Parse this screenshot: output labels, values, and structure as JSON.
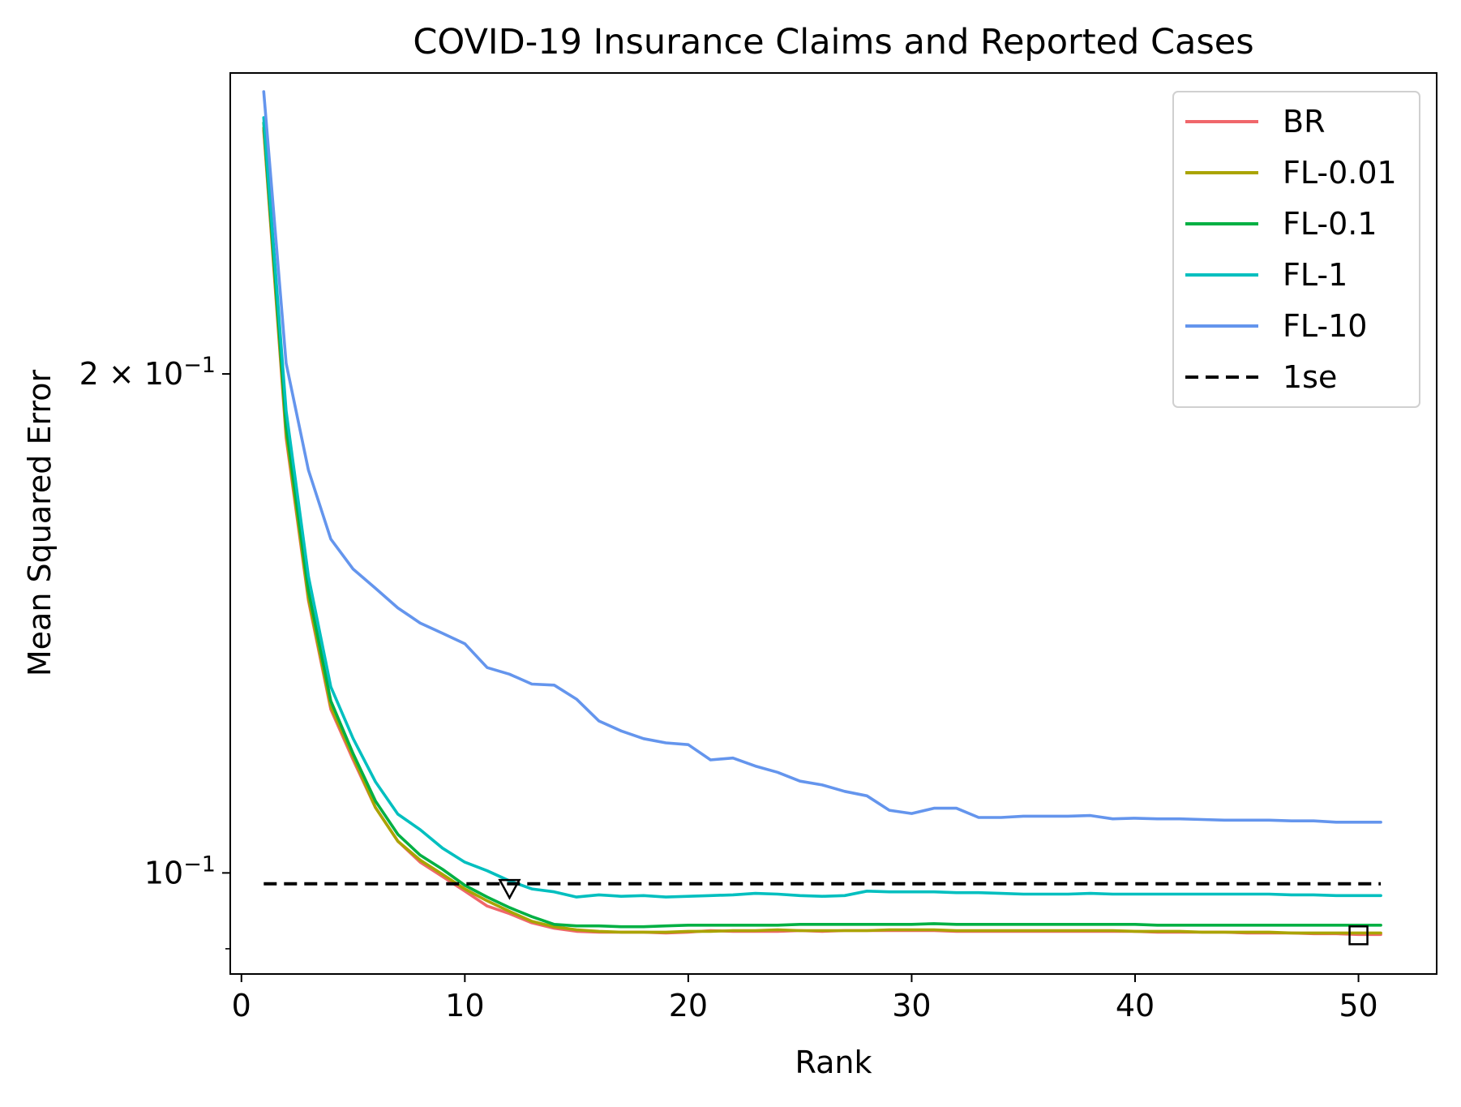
{
  "chart_data": {
    "type": "line",
    "title": "COVID-19 Insurance Claims and Reported Cases",
    "xlabel": "Rank",
    "ylabel": "Mean Squared Error",
    "yscale": "log",
    "xlim": [
      -0.5,
      53.5
    ],
    "ylim": [
      0.0869,
      0.3038
    ],
    "xticks": [
      {
        "value": 0,
        "label": "0"
      },
      {
        "value": 10,
        "label": "10"
      },
      {
        "value": 20,
        "label": "20"
      },
      {
        "value": 30,
        "label": "30"
      },
      {
        "value": 40,
        "label": "40"
      },
      {
        "value": 50,
        "label": "50"
      }
    ],
    "yticks_major": [
      {
        "value": 0.1,
        "base": "10",
        "exp": "−1",
        "coef": ""
      },
      {
        "value": 0.2,
        "base": "10",
        "exp": "−1",
        "coef": "2 × "
      }
    ],
    "yticks_minor": [
      0.09
    ],
    "legend_position": "top-right",
    "series": [
      {
        "name": "BR",
        "color": "#f0676b",
        "x": [
          1,
          2,
          3,
          4,
          5,
          6,
          7,
          8,
          9,
          10,
          11,
          12,
          13,
          14,
          15,
          16,
          17,
          18,
          19,
          20,
          21,
          22,
          23,
          24,
          25,
          26,
          27,
          28,
          29,
          30,
          31,
          32,
          33,
          34,
          35,
          36,
          37,
          38,
          39,
          40,
          41,
          42,
          43,
          44,
          45,
          46,
          47,
          48,
          49,
          50,
          51
        ],
        "y": [
          0.2805,
          0.183,
          0.146,
          0.1255,
          0.117,
          0.1095,
          0.1045,
          0.1015,
          0.0995,
          0.0975,
          0.0955,
          0.0945,
          0.0933,
          0.0926,
          0.0922,
          0.0921,
          0.0921,
          0.0921,
          0.092,
          0.0921,
          0.0923,
          0.0922,
          0.0922,
          0.0922,
          0.0923,
          0.0922,
          0.0923,
          0.0923,
          0.0923,
          0.0923,
          0.0923,
          0.0922,
          0.0922,
          0.0922,
          0.0922,
          0.0922,
          0.0922,
          0.0922,
          0.0922,
          0.0922,
          0.0921,
          0.0921,
          0.0921,
          0.0921,
          0.092,
          0.092,
          0.092,
          0.0919,
          0.0919,
          0.0918,
          0.0918
        ]
      },
      {
        "name": "FL-0.01",
        "color": "#aaa400",
        "x": [
          1,
          2,
          3,
          4,
          5,
          6,
          7,
          8,
          9,
          10,
          11,
          12,
          13,
          14,
          15,
          16,
          17,
          18,
          19,
          20,
          21,
          22,
          23,
          24,
          25,
          26,
          27,
          28,
          29,
          30,
          31,
          32,
          33,
          34,
          35,
          36,
          37,
          38,
          39,
          40,
          41,
          42,
          43,
          44,
          45,
          46,
          47,
          48,
          49,
          50,
          51
        ],
        "y": [
          0.2815,
          0.184,
          0.1465,
          0.126,
          0.1175,
          0.1095,
          0.1045,
          0.1018,
          0.0998,
          0.0978,
          0.0962,
          0.0948,
          0.0935,
          0.0928,
          0.0924,
          0.0922,
          0.0921,
          0.0921,
          0.0921,
          0.0922,
          0.0922,
          0.0923,
          0.0923,
          0.0924,
          0.0923,
          0.0923,
          0.0923,
          0.0923,
          0.0924,
          0.0924,
          0.0924,
          0.0923,
          0.0923,
          0.0923,
          0.0923,
          0.0923,
          0.0923,
          0.0923,
          0.0923,
          0.0922,
          0.0922,
          0.0922,
          0.0921,
          0.0921,
          0.0921,
          0.0921,
          0.092,
          0.092,
          0.092,
          0.092,
          0.092
        ]
      },
      {
        "name": "FL-0.1",
        "color": "#00b043",
        "x": [
          1,
          2,
          3,
          4,
          5,
          6,
          7,
          8,
          9,
          10,
          11,
          12,
          13,
          14,
          15,
          16,
          17,
          18,
          19,
          20,
          21,
          22,
          23,
          24,
          25,
          26,
          27,
          28,
          29,
          30,
          31,
          32,
          33,
          34,
          35,
          36,
          37,
          38,
          39,
          40,
          41,
          42,
          43,
          44,
          45,
          46,
          47,
          48,
          49,
          50,
          51
        ],
        "y": [
          0.2835,
          0.186,
          0.148,
          0.127,
          0.118,
          0.1105,
          0.1055,
          0.1025,
          0.1005,
          0.0983,
          0.0967,
          0.0953,
          0.0941,
          0.0931,
          0.0929,
          0.0929,
          0.0928,
          0.0928,
          0.0929,
          0.093,
          0.093,
          0.093,
          0.093,
          0.093,
          0.0931,
          0.0931,
          0.0931,
          0.0931,
          0.0931,
          0.0931,
          0.0932,
          0.0931,
          0.0931,
          0.0931,
          0.0931,
          0.0931,
          0.0931,
          0.0931,
          0.0931,
          0.0931,
          0.093,
          0.093,
          0.093,
          0.093,
          0.093,
          0.093,
          0.093,
          0.093,
          0.093,
          0.093,
          0.093
        ]
      },
      {
        "name": "FL-1",
        "color": "#00bfbf",
        "x": [
          1,
          2,
          3,
          4,
          5,
          6,
          7,
          8,
          9,
          10,
          11,
          12,
          13,
          14,
          15,
          16,
          17,
          18,
          19,
          20,
          21,
          22,
          23,
          24,
          25,
          26,
          27,
          28,
          29,
          30,
          31,
          32,
          33,
          34,
          35,
          36,
          37,
          38,
          39,
          40,
          41,
          42,
          43,
          44,
          45,
          46,
          47,
          48,
          49,
          50,
          51
        ],
        "y": [
          0.2855,
          0.19,
          0.151,
          0.1295,
          0.1205,
          0.1135,
          0.1085,
          0.1062,
          0.1035,
          0.1015,
          0.1003,
          0.0989,
          0.0978,
          0.0974,
          0.0967,
          0.097,
          0.0968,
          0.0969,
          0.0967,
          0.0968,
          0.0969,
          0.097,
          0.0972,
          0.0971,
          0.0969,
          0.0968,
          0.0969,
          0.0975,
          0.0974,
          0.0974,
          0.0974,
          0.0973,
          0.0973,
          0.0972,
          0.0971,
          0.0971,
          0.0971,
          0.0972,
          0.0971,
          0.0971,
          0.0971,
          0.0971,
          0.0971,
          0.0971,
          0.0971,
          0.0971,
          0.097,
          0.097,
          0.0969,
          0.0969,
          0.0969
        ]
      },
      {
        "name": "FL-10",
        "color": "#6495ed",
        "x": [
          1,
          2,
          3,
          4,
          5,
          6,
          7,
          8,
          9,
          10,
          11,
          12,
          13,
          14,
          15,
          16,
          17,
          18,
          19,
          20,
          21,
          22,
          23,
          24,
          25,
          26,
          27,
          28,
          29,
          30,
          31,
          32,
          33,
          34,
          35,
          36,
          37,
          38,
          39,
          40,
          41,
          42,
          43,
          44,
          45,
          46,
          47,
          48,
          49,
          50,
          51
        ],
        "y": [
          0.296,
          0.203,
          0.175,
          0.159,
          0.1525,
          0.1485,
          0.1445,
          0.1415,
          0.1395,
          0.1375,
          0.133,
          0.1318,
          0.13,
          0.1298,
          0.1273,
          0.1235,
          0.1218,
          0.1205,
          0.1198,
          0.1195,
          0.117,
          0.1173,
          0.116,
          0.115,
          0.1136,
          0.113,
          0.112,
          0.1113,
          0.1091,
          0.1086,
          0.1094,
          0.1094,
          0.108,
          0.108,
          0.1082,
          0.1082,
          0.1082,
          0.1083,
          0.1078,
          0.1079,
          0.1078,
          0.1078,
          0.1077,
          0.1076,
          0.1076,
          0.1076,
          0.1075,
          0.1075,
          0.1073,
          0.1073,
          0.1073
        ]
      },
      {
        "name": "1se",
        "color": "#000000",
        "dashed": true,
        "x": [
          1,
          51
        ],
        "y": [
          0.0985,
          0.0985
        ]
      }
    ],
    "markers": [
      {
        "shape": "triangle-down",
        "x": 12,
        "y": 0.0978
      },
      {
        "shape": "square",
        "x": 50,
        "y": 0.0917
      }
    ]
  }
}
